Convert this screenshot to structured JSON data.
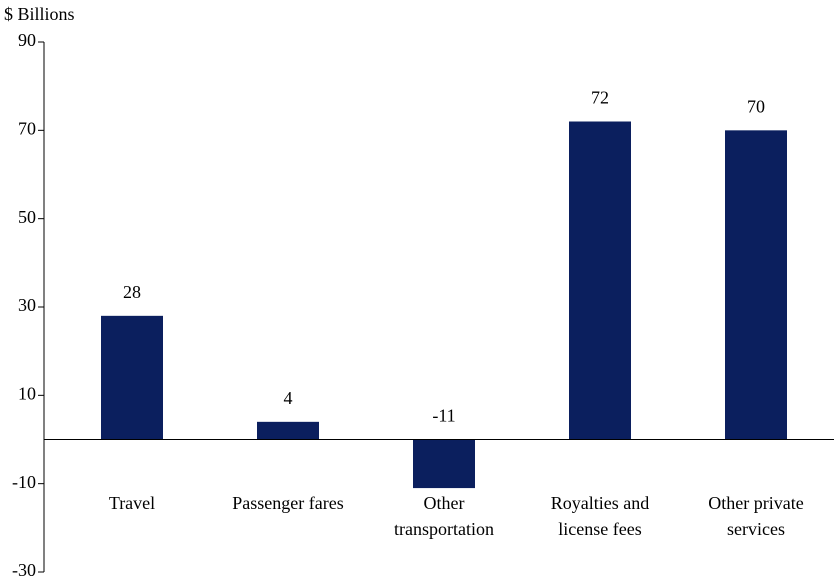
{
  "chart_data": {
    "type": "bar",
    "y_label": "$ Billions",
    "categories": [
      "Travel",
      "Passenger fares",
      "Other\ntransportation",
      "Royalties and\nlicense fees",
      "Other private\nservices"
    ],
    "values": [
      28,
      4,
      -11,
      72,
      70
    ],
    "color": "#0b1f5e",
    "ylim": [
      -30,
      90
    ],
    "yticks": [
      -30,
      -10,
      10,
      30,
      50,
      70,
      90
    ],
    "grid": false
  }
}
